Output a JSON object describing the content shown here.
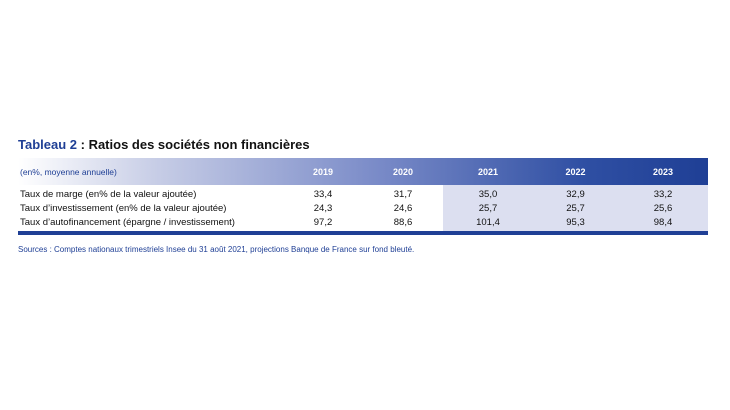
{
  "title": {
    "prefix": "Tableau 2",
    "rest": " : Ratios des sociétés non financières"
  },
  "table": {
    "unit_label": "(en%, moyenne annuelle)",
    "years": [
      "2019",
      "2020",
      "2021",
      "2022",
      "2023"
    ],
    "projection_years": [
      "2021",
      "2022",
      "2023"
    ],
    "rows": [
      {
        "label": "Taux de marge (en% de la valeur ajoutée)",
        "values": [
          "33,4",
          "31,7",
          "35,0",
          "32,9",
          "33,2"
        ]
      },
      {
        "label": "Taux d’investissement (en% de la valeur ajoutée)",
        "values": [
          "24,3",
          "24,6",
          "25,7",
          "25,7",
          "25,6"
        ]
      },
      {
        "label": "Taux d’autofinancement (épargne / investissement)",
        "values": [
          "97,2",
          "88,6",
          "101,4",
          "95,3",
          "98,4"
        ]
      }
    ]
  },
  "source": "Sources : Comptes nationaux trimestriels Insee du 31 août 2021, projections Banque de France sur fond bleuté.",
  "colors": {
    "brand_blue": "#1f3f95",
    "projection_fill": "#dcdff0"
  }
}
